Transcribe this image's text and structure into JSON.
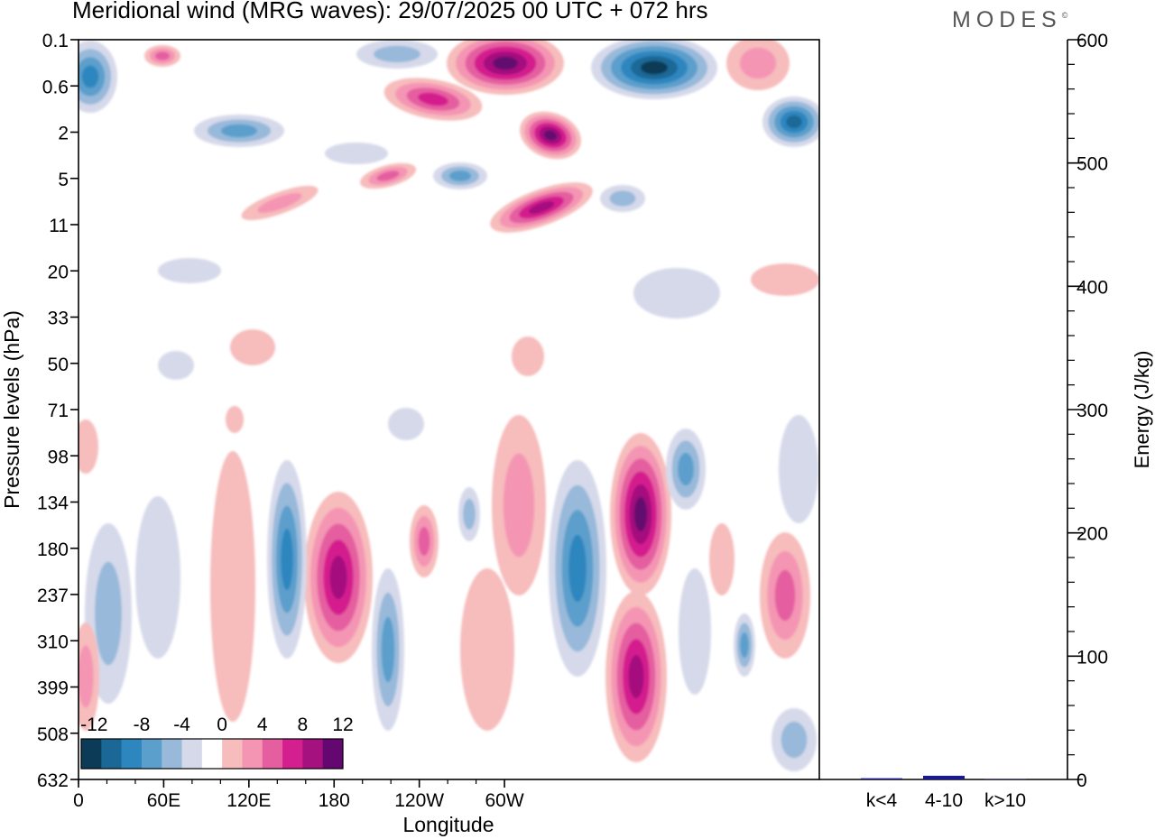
{
  "header": {
    "title": "Meridional wind (MRG waves):  29/07/2025  00 UTC  + 072 hrs",
    "brand": "MODES",
    "brand_mark": "©"
  },
  "chart_data": [
    {
      "type": "heatmap",
      "title": "Meridional wind (MRG waves):  29/07/2025  00 UTC  + 072 hrs",
      "xlabel": "Longitude",
      "ylabel": "Pressure levels (hPa)",
      "x_ticks": [
        "0",
        "60E",
        "120E",
        "180",
        "120W",
        "60W"
      ],
      "y_ticks": [
        "0.1",
        "0.6",
        "2",
        "5",
        "11",
        "20",
        "33",
        "50",
        "71",
        "98",
        "134",
        "180",
        "237",
        "310",
        "399",
        "508",
        "632"
      ],
      "colorbar": {
        "labels": [
          "-12",
          "-8",
          "-4",
          "0",
          "4",
          "8",
          "12"
        ],
        "levels": [
          -14,
          -12,
          -10,
          -8,
          -6,
          -4,
          -2,
          2,
          4,
          6,
          8,
          10,
          12,
          14
        ],
        "colors": [
          "#0c3b57",
          "#1b6896",
          "#2e86bf",
          "#5b9fcc",
          "#98b9da",
          "#d6d9ea",
          "#ffffff",
          "#f7bcbc",
          "#f495b4",
          "#e55fa0",
          "#d41f8e",
          "#a5117e",
          "#640770"
        ]
      }
    },
    {
      "type": "bar",
      "ylabel": "Energy (J/kg)",
      "categories": [
        "k<4",
        "4-10",
        "k>10"
      ],
      "values": [
        1,
        3,
        0
      ],
      "ylim": [
        0,
        600
      ],
      "y_ticks": [
        "0",
        "100",
        "200",
        "300",
        "400",
        "500",
        "600"
      ],
      "bar_color": "#1a1a8c"
    }
  ]
}
